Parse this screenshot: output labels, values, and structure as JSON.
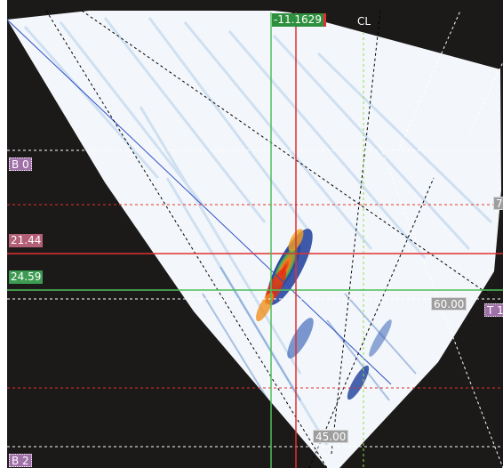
{
  "cursor": {
    "index_value": "-11.1629",
    "label_color": "#2e8f3e"
  },
  "centerline": {
    "label": "CL"
  },
  "depth_labels": {
    "b0": "B 0",
    "b2": "B 2",
    "t1": "T 1",
    "right_partial": "7"
  },
  "readouts": {
    "red_cursor_depth": "21.44",
    "green_cursor_depth": "24.59",
    "angle_60": "60.00",
    "angle_45": "45.00"
  },
  "colors": {
    "background": "#1c1a19",
    "sector_fill": "#f3f7fb",
    "red_cursor": "#e03030",
    "green_cursor": "#4fbf5a",
    "label_purple": "#a070a8",
    "label_grey": "#9e9e9e"
  }
}
